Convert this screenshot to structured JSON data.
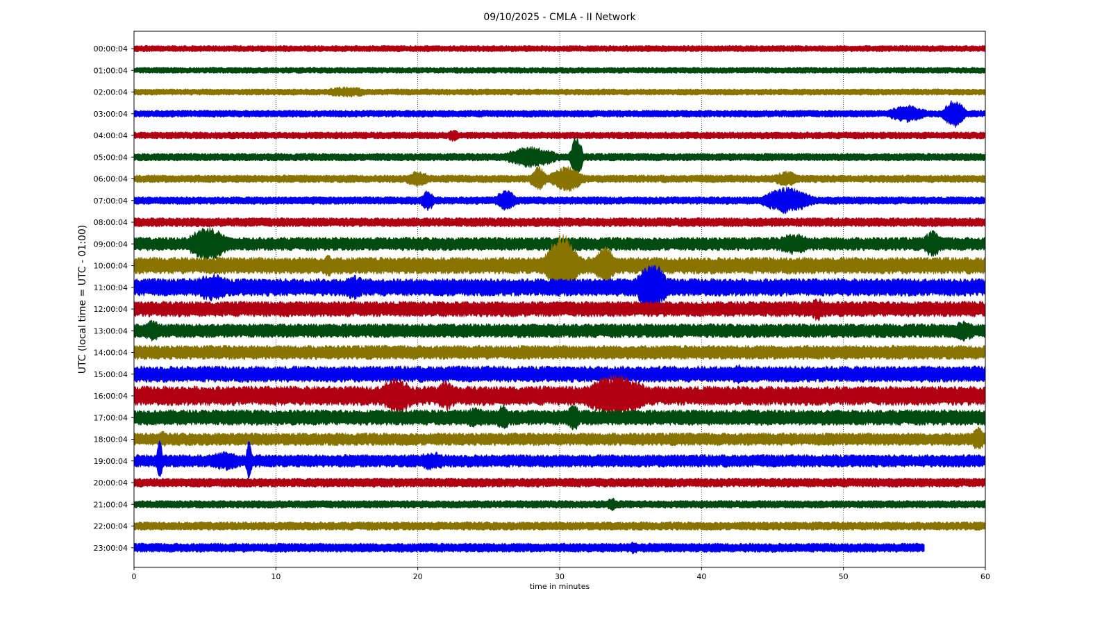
{
  "chart_data": {
    "type": "line",
    "title": "09/10/2025 - CMLA - II Network",
    "xlabel": "time in minutes",
    "ylabel": "UTC (local time = UTC - 01:00)",
    "xlim": [
      0,
      60
    ],
    "xticks": [
      "0",
      "10",
      "20",
      "30",
      "40",
      "50",
      "60"
    ],
    "grid": "vertical dotted lines at x ticks",
    "trace_colors": [
      "#b00012",
      "#004b0f",
      "#8a7400",
      "#0000f0"
    ],
    "series": [
      {
        "label": "00:00:04",
        "color": "#b00012",
        "amplitude": 0.18,
        "end_minute": 60,
        "events": []
      },
      {
        "label": "01:00:04",
        "color": "#004b0f",
        "amplitude": 0.17,
        "end_minute": 60,
        "events": []
      },
      {
        "label": "02:00:04",
        "color": "#8a7400",
        "amplitude": 0.18,
        "end_minute": 60,
        "events": [
          {
            "minute": 15,
            "amp": 0.3,
            "width": 2
          }
        ]
      },
      {
        "label": "03:00:04",
        "color": "#0000f0",
        "amplitude": 0.2,
        "end_minute": 60,
        "events": [
          {
            "minute": 54.5,
            "amp": 0.5,
            "width": 1.5
          },
          {
            "minute": 57.8,
            "amp": 0.8,
            "width": 0.8
          }
        ]
      },
      {
        "label": "04:00:04",
        "color": "#b00012",
        "amplitude": 0.2,
        "end_minute": 60,
        "events": [
          {
            "minute": 22.5,
            "amp": 0.35,
            "width": 0.5
          }
        ]
      },
      {
        "label": "05:00:04",
        "color": "#004b0f",
        "amplitude": 0.22,
        "end_minute": 60,
        "events": [
          {
            "minute": 28,
            "amp": 0.6,
            "width": 2
          },
          {
            "minute": 31.2,
            "amp": 1.3,
            "width": 0.4
          }
        ]
      },
      {
        "label": "06:00:04",
        "color": "#8a7400",
        "amplitude": 0.22,
        "end_minute": 60,
        "events": [
          {
            "minute": 20,
            "amp": 0.45,
            "width": 1
          },
          {
            "minute": 28.5,
            "amp": 0.7,
            "width": 0.6
          },
          {
            "minute": 30.5,
            "amp": 0.75,
            "width": 1.2
          },
          {
            "minute": 46,
            "amp": 0.45,
            "width": 1
          }
        ]
      },
      {
        "label": "07:00:04",
        "color": "#0000f0",
        "amplitude": 0.22,
        "end_minute": 60,
        "events": [
          {
            "minute": 20.7,
            "amp": 0.6,
            "width": 0.5
          },
          {
            "minute": 26.2,
            "amp": 0.6,
            "width": 0.8
          },
          {
            "minute": 46,
            "amp": 0.75,
            "width": 1.8
          }
        ]
      },
      {
        "label": "08:00:04",
        "color": "#b00012",
        "amplitude": 0.26,
        "end_minute": 60,
        "events": []
      },
      {
        "label": "09:00:04",
        "color": "#004b0f",
        "amplitude": 0.38,
        "end_minute": 60,
        "events": [
          {
            "minute": 5.2,
            "amp": 1.0,
            "width": 1.5
          },
          {
            "minute": 46.5,
            "amp": 0.6,
            "width": 1.5
          },
          {
            "minute": 56.3,
            "amp": 0.75,
            "width": 0.8
          }
        ]
      },
      {
        "label": "10:00:04",
        "color": "#8a7400",
        "amplitude": 0.48,
        "end_minute": 60,
        "events": [
          {
            "minute": 13.7,
            "amp": 0.7,
            "width": 0.5
          },
          {
            "minute": 30.2,
            "amp": 1.8,
            "width": 1.2
          },
          {
            "minute": 33.2,
            "amp": 1.1,
            "width": 0.8
          }
        ]
      },
      {
        "label": "11:00:04",
        "color": "#0000f0",
        "amplitude": 0.5,
        "end_minute": 60,
        "events": [
          {
            "minute": 5.5,
            "amp": 0.8,
            "width": 1.5
          },
          {
            "minute": 15.5,
            "amp": 0.7,
            "width": 1
          },
          {
            "minute": 36.5,
            "amp": 1.4,
            "width": 1.2
          }
        ]
      },
      {
        "label": "12:00:04",
        "color": "#b00012",
        "amplitude": 0.44,
        "end_minute": 60,
        "events": [
          {
            "minute": 48.2,
            "amp": 0.7,
            "width": 0.6
          }
        ]
      },
      {
        "label": "13:00:04",
        "color": "#004b0f",
        "amplitude": 0.4,
        "end_minute": 60,
        "events": [
          {
            "minute": 1.3,
            "amp": 0.6,
            "width": 0.8
          },
          {
            "minute": 58.5,
            "amp": 0.6,
            "width": 1
          }
        ]
      },
      {
        "label": "14:00:04",
        "color": "#8a7400",
        "amplitude": 0.4,
        "end_minute": 60,
        "events": []
      },
      {
        "label": "15:00:04",
        "color": "#0000f0",
        "amplitude": 0.46,
        "end_minute": 60,
        "events": [
          {
            "minute": 42.5,
            "amp": 0.6,
            "width": 0.5
          }
        ]
      },
      {
        "label": "16:00:04",
        "color": "#b00012",
        "amplitude": 0.55,
        "end_minute": 60,
        "events": [
          {
            "minute": 18.5,
            "amp": 1.0,
            "width": 1.5
          },
          {
            "minute": 22,
            "amp": 0.9,
            "width": 0.8
          },
          {
            "minute": 34,
            "amp": 1.2,
            "width": 2.5
          }
        ]
      },
      {
        "label": "17:00:04",
        "color": "#004b0f",
        "amplitude": 0.44,
        "end_minute": 60,
        "events": [
          {
            "minute": 26,
            "amp": 0.75,
            "width": 0.6
          },
          {
            "minute": 31,
            "amp": 0.75,
            "width": 0.6
          },
          {
            "minute": 24,
            "amp": 0.6,
            "width": 1
          }
        ]
      },
      {
        "label": "18:00:04",
        "color": "#8a7400",
        "amplitude": 0.36,
        "end_minute": 60,
        "events": [
          {
            "minute": 2,
            "amp": 0.45,
            "width": 0.5
          },
          {
            "minute": 59.5,
            "amp": 0.7,
            "width": 0.5
          }
        ]
      },
      {
        "label": "19:00:04",
        "color": "#0000f0",
        "amplitude": 0.36,
        "end_minute": 60,
        "events": [
          {
            "minute": 1.8,
            "amp": 1.3,
            "width": 0.2
          },
          {
            "minute": 8.1,
            "amp": 1.3,
            "width": 0.2
          },
          {
            "minute": 6.5,
            "amp": 0.55,
            "width": 1.5
          },
          {
            "minute": 21,
            "amp": 0.55,
            "width": 1.2
          }
        ]
      },
      {
        "label": "20:00:04",
        "color": "#b00012",
        "amplitude": 0.26,
        "end_minute": 60,
        "events": []
      },
      {
        "label": "21:00:04",
        "color": "#004b0f",
        "amplitude": 0.22,
        "end_minute": 60,
        "events": [
          {
            "minute": 33.7,
            "amp": 0.4,
            "width": 0.4
          }
        ]
      },
      {
        "label": "22:00:04",
        "color": "#8a7400",
        "amplitude": 0.24,
        "end_minute": 60,
        "events": []
      },
      {
        "label": "23:00:04",
        "color": "#0000f0",
        "amplitude": 0.26,
        "end_minute": 55.7,
        "events": [
          {
            "minute": 35.2,
            "amp": 0.4,
            "width": 0.4
          }
        ]
      }
    ]
  }
}
